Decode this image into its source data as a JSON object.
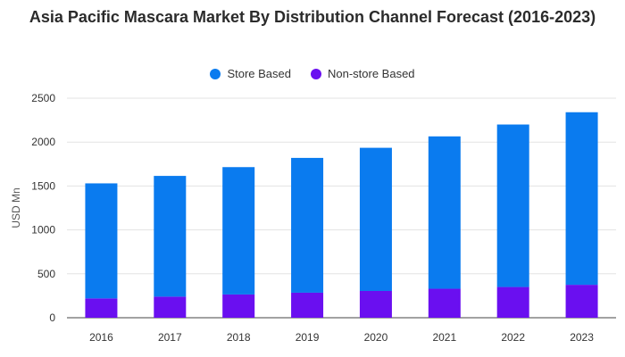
{
  "chart_data": {
    "type": "bar",
    "stacked": true,
    "title": "Asia Pacific Mascara Market By Distribution Channel Forecast (2016-2023)",
    "xlabel": "",
    "ylabel": "USD Mn",
    "ylim": [
      0,
      2500
    ],
    "yticks": [
      0,
      500,
      1000,
      1500,
      2000,
      2500
    ],
    "grid": true,
    "legend_position": "top-center",
    "categories": [
      "2016",
      "2017",
      "2018",
      "2019",
      "2020",
      "2021",
      "2022",
      "2023"
    ],
    "series": [
      {
        "name": "Store Based",
        "color": "#0a7bef",
        "values": [
          1310,
          1375,
          1450,
          1535,
          1630,
          1735,
          1850,
          1965
        ]
      },
      {
        "name": "Non-store Based",
        "color": "#6a0ff0",
        "values": [
          220,
          240,
          265,
          285,
          305,
          330,
          350,
          375
        ]
      }
    ]
  }
}
